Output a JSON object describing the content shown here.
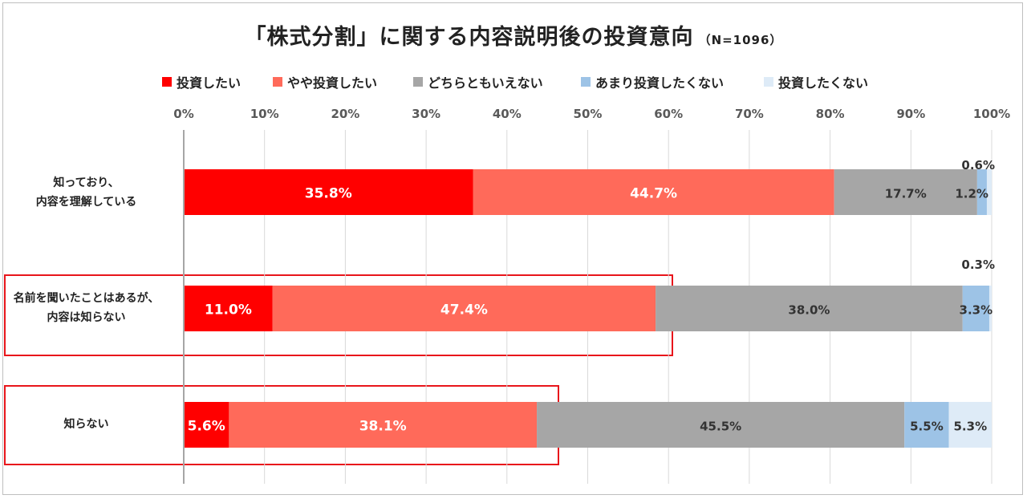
{
  "chart_data": {
    "type": "stacked-bar-horizontal",
    "title": "「株式分割」に関する内容説明後の投資意向",
    "sample": "（N=1096）",
    "x_ticks": [
      "0%",
      "10%",
      "20%",
      "30%",
      "40%",
      "50%",
      "60%",
      "70%",
      "80%",
      "90%",
      "100%"
    ],
    "xlim": [
      0,
      100
    ],
    "series": [
      {
        "name": "投資したい",
        "color": "#ff0000",
        "text_color": "#ffffff"
      },
      {
        "name": "やや投資したい",
        "color": "#ff6a5a",
        "text_color": "#ffffff"
      },
      {
        "name": "どちらともいえない",
        "color": "#a6a6a6",
        "text_color": "#333333"
      },
      {
        "name": "あまり投資したくない",
        "color": "#9dc3e6",
        "text_color": "#333333"
      },
      {
        "name": "投資したくない",
        "color": "#deebf7",
        "text_color": "#333333"
      }
    ],
    "categories": [
      {
        "label": [
          "知っており、",
          "内容を理解している"
        ],
        "values": [
          35.8,
          44.7,
          17.7,
          1.2,
          0.6
        ],
        "labels": [
          "35.8%",
          "44.7%",
          "17.7%",
          "1.2%",
          "0.6%"
        ],
        "highlighted": false
      },
      {
        "label": [
          "名前を聞いたことはあるが、",
          "内容は知らない"
        ],
        "values": [
          11.0,
          47.4,
          38.0,
          3.3,
          0.3
        ],
        "labels": [
          "11.0%",
          "47.4%",
          "38.0%",
          "3.3%",
          "0.3%"
        ],
        "highlighted": true
      },
      {
        "label": [
          "知らない"
        ],
        "values": [
          5.6,
          38.1,
          45.5,
          5.5,
          5.3
        ],
        "labels": [
          "5.6%",
          "38.1%",
          "45.5%",
          "5.5%",
          "5.3%"
        ],
        "highlighted": true
      }
    ]
  }
}
